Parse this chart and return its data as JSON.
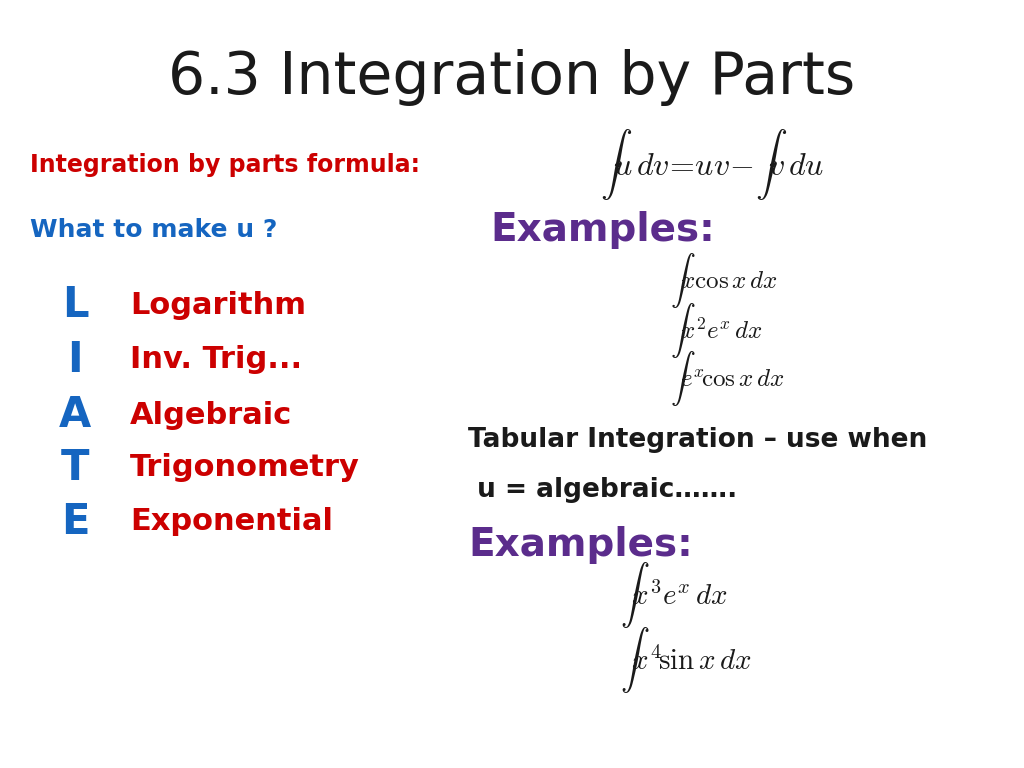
{
  "title": "6.3 Integration by Parts",
  "title_fontsize": 42,
  "title_color": "#1a1a1a",
  "bg_color": "#ffffff",
  "formula_label": "Integration by parts formula:",
  "formula_label_color": "#cc0000",
  "formula_label_fontsize": 17,
  "what_to_make": "What to make u ?",
  "what_to_make_color": "#1565C0",
  "what_to_make_fontsize": 18,
  "ilate_letters": [
    "L",
    "I",
    "A",
    "T",
    "E"
  ],
  "ilate_letter_color": "#1565C0",
  "ilate_letter_fontsize": 30,
  "ilate_words": [
    "Logarithm",
    "Inv. Trig...",
    "Algebraic",
    "Trigonometry",
    "Exponential"
  ],
  "ilate_word_color": "#cc0000",
  "ilate_word_fontsize": 22,
  "examples1_label": "Examples:",
  "examples1_color": "#5b2c8c",
  "examples1_fontsize": 28,
  "example_math1_fontsize": 18,
  "tabular_text1": "Tabular Integration – use when",
  "tabular_text2": " u = algebraic…….",
  "tabular_color": "#1a1a1a",
  "tabular_fontsize": 19,
  "examples2_label": "Examples:",
  "examples2_color": "#5b2c8c",
  "examples2_fontsize": 28,
  "example_math2_fontsize": 18
}
